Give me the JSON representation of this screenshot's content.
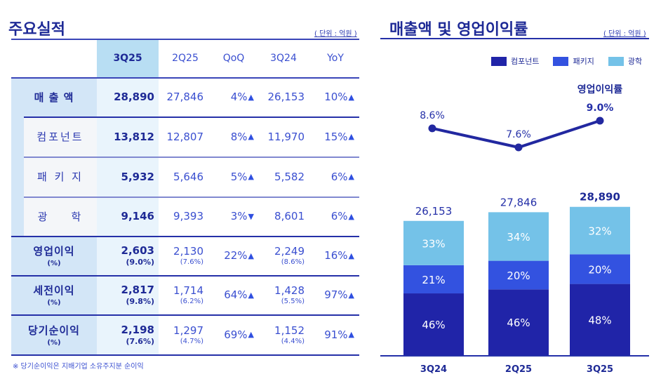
{
  "left": {
    "title": "주요실적",
    "unit": "( 단위 : 억원 )",
    "columns": [
      "3Q25",
      "2Q25",
      "QoQ",
      "3Q24",
      "YoY"
    ],
    "rows": [
      {
        "label": "매 출 액",
        "sub": "",
        "type": "main",
        "v3q25": "28,890",
        "v3q25_pct": "",
        "v2q25": "27,846",
        "v2q25_pct": "",
        "qoq": "4%",
        "qoq_dir": "▲",
        "v3q24": "26,153",
        "v3q24_pct": "",
        "yoy": "10%",
        "yoy_dir": "▲"
      },
      {
        "label": "컴포넌트",
        "sub": "",
        "type": "sub",
        "v3q25": "13,812",
        "v3q25_pct": "",
        "v2q25": "12,807",
        "v2q25_pct": "",
        "qoq": "8%",
        "qoq_dir": "▲",
        "v3q24": "11,970",
        "v3q24_pct": "",
        "yoy": "15%",
        "yoy_dir": "▲"
      },
      {
        "label": "패 키 지",
        "sub": "",
        "type": "sub",
        "v3q25": "5,932",
        "v3q25_pct": "",
        "v2q25": "5,646",
        "v2q25_pct": "",
        "qoq": "5%",
        "qoq_dir": "▲",
        "v3q24": "5,582",
        "v3q24_pct": "",
        "yoy": "6%",
        "yoy_dir": "▲"
      },
      {
        "label": "광    학",
        "sub": "",
        "type": "sub",
        "v3q25": "9,146",
        "v3q25_pct": "",
        "v2q25": "9,393",
        "v2q25_pct": "",
        "qoq": "3%",
        "qoq_dir": "▼",
        "v3q24": "8,601",
        "v3q24_pct": "",
        "yoy": "6%",
        "yoy_dir": "▲"
      },
      {
        "label": "영업이익",
        "sub": "(%)",
        "type": "main",
        "v3q25": "2,603",
        "v3q25_pct": "(9.0%)",
        "v2q25": "2,130",
        "v2q25_pct": "(7.6%)",
        "qoq": "22%",
        "qoq_dir": "▲",
        "v3q24": "2,249",
        "v3q24_pct": "(8.6%)",
        "yoy": "16%",
        "yoy_dir": "▲"
      },
      {
        "label": "세전이익",
        "sub": "(%)",
        "type": "main",
        "v3q25": "2,817",
        "v3q25_pct": "(9.8%)",
        "v2q25": "1,714",
        "v2q25_pct": "(6.2%)",
        "qoq": "64%",
        "qoq_dir": "▲",
        "v3q24": "1,428",
        "v3q24_pct": "(5.5%)",
        "yoy": "97%",
        "yoy_dir": "▲"
      },
      {
        "label": "당기순이익",
        "sub": "(%)",
        "type": "main",
        "v3q25": "2,198",
        "v3q25_pct": "(7.6%)",
        "v2q25": "1,297",
        "v2q25_pct": "(4.7%)",
        "qoq": "69%",
        "qoq_dir": "▲",
        "v3q24": "1,152",
        "v3q24_pct": "(4.4%)",
        "yoy": "91%",
        "yoy_dir": "▲"
      }
    ],
    "footnote": "※ 당기순이익은 지배기업 소유주지분 순이익"
  },
  "right": {
    "title": "매출액 및 영업이익률",
    "unit": "( 단위 : 억원 )"
  },
  "colors": {
    "component": "#2024a8",
    "package": "#3352e0",
    "optics": "#74c2e8",
    "line": "#2228a0",
    "highlight_col": "#b8def3"
  },
  "chart_data": {
    "type": "bar",
    "subtype": "stacked-bar-with-line",
    "title": "매출액 및 영업이익률",
    "unit": "억원",
    "categories": [
      "3Q24",
      "2Q25",
      "3Q25"
    ],
    "totals": [
      26153,
      27846,
      28890
    ],
    "total_labels": [
      "26,153",
      "27,846",
      "28,890"
    ],
    "series": [
      {
        "name": "컴포넌트",
        "key": "component",
        "share_pct": [
          46,
          46,
          48
        ]
      },
      {
        "name": "패키지",
        "key": "package",
        "share_pct": [
          21,
          20,
          20
        ]
      },
      {
        "name": "광학",
        "key": "optics",
        "share_pct": [
          33,
          34,
          32
        ]
      }
    ],
    "line": {
      "name": "영업이익률",
      "values_pct": [
        8.6,
        7.6,
        9.0
      ],
      "labels": [
        "8.6%",
        "7.6%",
        "9.0%"
      ]
    },
    "legend": [
      "컴포넌트",
      "패키지",
      "광학"
    ],
    "legend_position": "top-right",
    "grid": false
  }
}
